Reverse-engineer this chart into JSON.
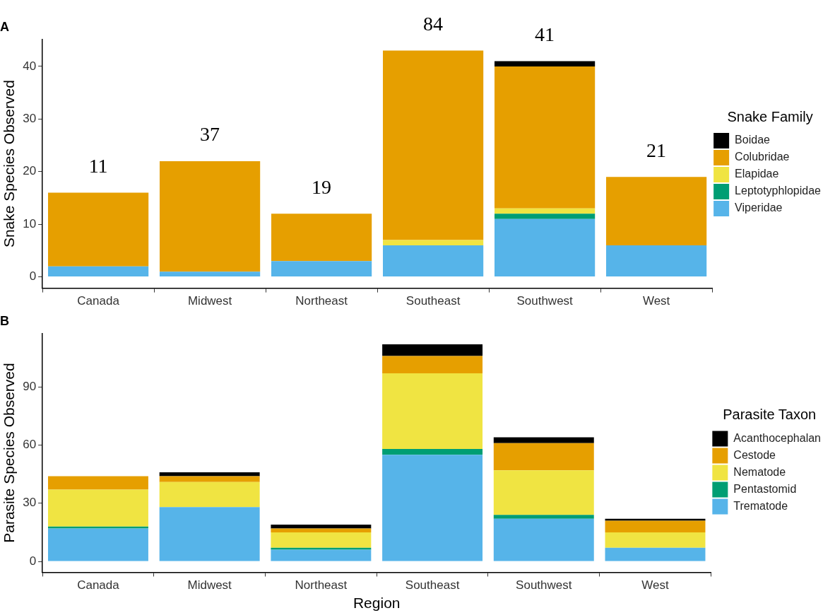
{
  "chart_data": [
    {
      "type": "bar",
      "title": "A",
      "ylabel": "Snake Species Observed",
      "legend_title": "Snake Family",
      "stacked": true,
      "legend": "right",
      "categories": [
        "Canada",
        "Midwest",
        "Northeast",
        "Southeast",
        "Southwest",
        "West"
      ],
      "series": [
        {
          "name": "Viperidae",
          "color": "#56b4e9",
          "values": [
            2,
            1,
            3,
            6,
            11,
            6
          ]
        },
        {
          "name": "Leptotyphlopidae",
          "color": "#009e73",
          "values": [
            0,
            0,
            0,
            0,
            1,
            0
          ]
        },
        {
          "name": "Elapidae",
          "color": "#f0e442",
          "values": [
            0,
            0,
            0,
            1,
            1,
            0
          ]
        },
        {
          "name": "Colubridae",
          "color": "#e69f00",
          "values": [
            14,
            21,
            9,
            36,
            27,
            13
          ]
        },
        {
          "name": "Boidae",
          "color": "#000000",
          "values": [
            0,
            0,
            0,
            0,
            1,
            0
          ]
        }
      ],
      "ylim": [
        -2.15,
        45.15
      ],
      "yticks": [
        0,
        10,
        20,
        30,
        40
      ],
      "annotations": [
        "11",
        "37",
        "19",
        "84",
        "41",
        "21"
      ]
    },
    {
      "type": "bar",
      "title": "B",
      "xlabel": "Region",
      "ylabel": "Parasite Species Observed",
      "legend_title": "Parasite Taxon",
      "stacked": true,
      "legend": "right",
      "categories": [
        "Canada",
        "Midwest",
        "Northeast",
        "Southeast",
        "Southwest",
        "West"
      ],
      "series": [
        {
          "name": "Trematode",
          "color": "#56b4e9",
          "values": [
            17,
            28,
            6,
            55,
            22,
            7
          ]
        },
        {
          "name": "Pentastomid",
          "color": "#009e73",
          "values": [
            1,
            0,
            1,
            3,
            2,
            0
          ]
        },
        {
          "name": "Nematode",
          "color": "#f0e442",
          "values": [
            19,
            13,
            8,
            39,
            23,
            8
          ]
        },
        {
          "name": "Cestode",
          "color": "#e69f00",
          "values": [
            7,
            3,
            2,
            9,
            14,
            6
          ]
        },
        {
          "name": "Acanthocephalan",
          "color": "#000000",
          "values": [
            0,
            2,
            2,
            6,
            3,
            1
          ]
        }
      ],
      "ylim": [
        -5.6,
        117.6
      ],
      "yticks": [
        0,
        30,
        60,
        90
      ]
    }
  ]
}
